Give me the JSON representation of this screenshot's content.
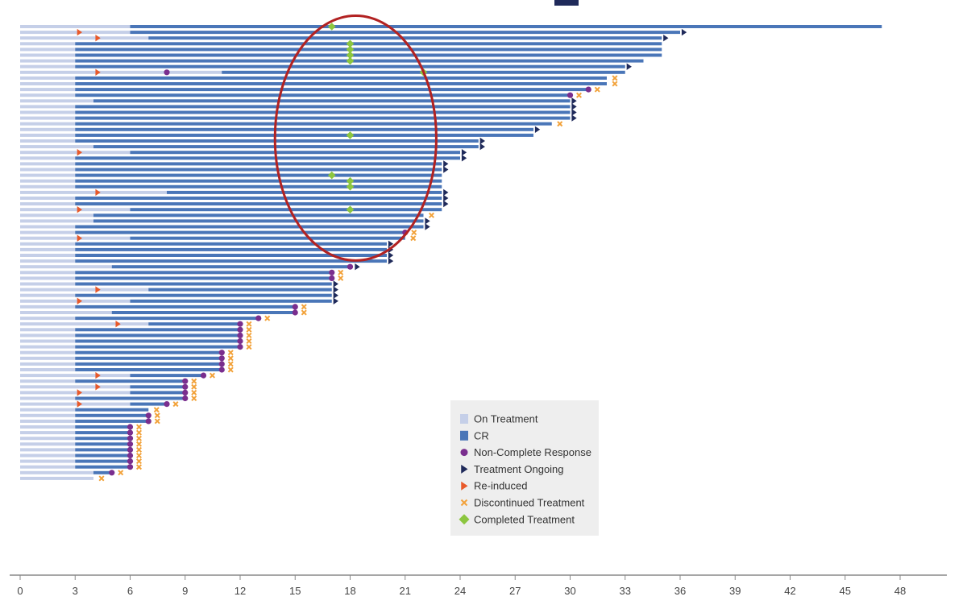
{
  "chart_data": {
    "type": "swimmer",
    "title": "",
    "xlabel": "",
    "ylabel": "",
    "xlim": [
      0,
      49
    ],
    "x_ticks": [
      0,
      3,
      6,
      9,
      12,
      15,
      18,
      21,
      24,
      27,
      30,
      33,
      36,
      39,
      42,
      45,
      48
    ],
    "grid": false,
    "legend_position": "bottom-center",
    "colors": {
      "on_treatment": "#c5cfe8",
      "cr": "#4a76b8",
      "non_complete_response": "#7a2e8e",
      "treatment_ongoing": "#1f2a5a",
      "re_induced": "#e8592a",
      "discontinued": "#f2a23a",
      "completed": "#8cc63f",
      "annotation_ellipse": "#b22222"
    },
    "legend": [
      {
        "key": "on_treatment",
        "label": "On Treatment",
        "shape": "square-light"
      },
      {
        "key": "cr",
        "label": "CR",
        "shape": "square"
      },
      {
        "key": "non_complete_response",
        "label": "Non-Complete Response",
        "shape": "circle"
      },
      {
        "key": "treatment_ongoing",
        "label": "Treatment Ongoing",
        "shape": "triangle"
      },
      {
        "key": "re_induced",
        "label": "Re-induced",
        "shape": "triangle"
      },
      {
        "key": "discontinued",
        "label": "Discontinued Treatment",
        "shape": "x"
      },
      {
        "key": "completed",
        "label": "Completed Treatment",
        "shape": "diamond"
      }
    ],
    "annotation": {
      "shape": "ellipse",
      "cx": 18.3,
      "cy_row": 19.5,
      "rx": 4.4,
      "ry_rows": 20
    },
    "rows": [
      {
        "cr_start": 6,
        "end": 47,
        "marker": "completed",
        "marker_x": 17
      },
      {
        "cr_start": 6,
        "end": 36,
        "marker": "ongoing",
        "reinduced": 3.2
      },
      {
        "cr_start": 7,
        "end": 35,
        "marker": "ongoing",
        "reinduced": 4.2
      },
      {
        "cr_start": 3,
        "end": 35,
        "marker": "completed",
        "marker_x": 18
      },
      {
        "cr_start": 3,
        "end": 35,
        "marker": "completed",
        "marker_x": 18
      },
      {
        "cr_start": 3,
        "end": 35,
        "marker": "completed",
        "marker_x": 18
      },
      {
        "cr_start": 3,
        "end": 34,
        "marker": "completed",
        "marker_x": 18
      },
      {
        "cr_start": 3,
        "end": 33,
        "marker": "ongoing"
      },
      {
        "cr_start": 11,
        "end": 33,
        "marker": "completed",
        "marker_x": 22,
        "reinduced": 4.2,
        "ncr": 8
      },
      {
        "cr_start": 3,
        "end": 32,
        "marker": "discontinued"
      },
      {
        "cr_start": 3,
        "end": 32,
        "marker": "discontinued"
      },
      {
        "cr_start": 3,
        "end": 31,
        "marker": "ncr_disc"
      },
      {
        "cr_start": 3,
        "end": 30,
        "marker": "ncr_disc"
      },
      {
        "cr_start": 4,
        "end": 30,
        "marker": "ongoing"
      },
      {
        "cr_start": 3,
        "end": 30,
        "marker": "ongoing"
      },
      {
        "cr_start": 3,
        "end": 30,
        "marker": "ongoing"
      },
      {
        "cr_start": 3,
        "end": 30,
        "marker": "ongoing"
      },
      {
        "cr_start": 3,
        "end": 29,
        "marker": "discontinued"
      },
      {
        "cr_start": 3,
        "end": 28,
        "marker": "ongoing"
      },
      {
        "cr_start": 3,
        "end": 28,
        "marker": "completed",
        "marker_x": 18
      },
      {
        "cr_start": 3,
        "end": 25,
        "marker": "ongoing"
      },
      {
        "cr_start": 4,
        "end": 25,
        "marker": "ongoing"
      },
      {
        "cr_start": 6,
        "end": 24,
        "marker": "ongoing",
        "reinduced": 3.2
      },
      {
        "cr_start": 3,
        "end": 24,
        "marker": "ongoing"
      },
      {
        "cr_start": 3,
        "end": 23,
        "marker": "ongoing"
      },
      {
        "cr_start": 3,
        "end": 23,
        "marker": "ongoing"
      },
      {
        "cr_start": 3,
        "end": 23,
        "marker": "completed",
        "marker_x": 17
      },
      {
        "cr_start": 3,
        "end": 23,
        "marker": "completed",
        "marker_x": 18
      },
      {
        "cr_start": 3,
        "end": 23,
        "marker": "completed",
        "marker_x": 18
      },
      {
        "cr_start": 8,
        "end": 23,
        "marker": "ongoing",
        "reinduced": 4.2
      },
      {
        "cr_start": 3,
        "end": 23,
        "marker": "ongoing"
      },
      {
        "cr_start": 3,
        "end": 23,
        "marker": "ongoing"
      },
      {
        "cr_start": 6,
        "end": 23,
        "marker": "completed",
        "marker_x": 18,
        "reinduced": 3.2
      },
      {
        "cr_start": 4,
        "end": 22,
        "marker": "discontinued"
      },
      {
        "cr_start": 4,
        "end": 22,
        "marker": "ongoing"
      },
      {
        "cr_start": 3,
        "end": 22,
        "marker": "ongoing"
      },
      {
        "cr_start": 3,
        "end": 21,
        "marker": "ncr_disc"
      },
      {
        "cr_start": 6,
        "end": 21,
        "marker": "discontinued",
        "reinduced": 3.2
      },
      {
        "cr_start": 3,
        "end": 20,
        "marker": "ongoing"
      },
      {
        "cr_start": 3,
        "end": 20,
        "marker": "ongoing"
      },
      {
        "cr_start": 3,
        "end": 20,
        "marker": "ongoing"
      },
      {
        "cr_start": 3,
        "end": 20,
        "marker": "ongoing"
      },
      {
        "cr_start": 5,
        "end": 18,
        "marker": "ncr_ongoing"
      },
      {
        "cr_start": 3,
        "end": 17,
        "marker": "ncr_disc"
      },
      {
        "cr_start": 3,
        "end": 17,
        "marker": "ncr_disc"
      },
      {
        "cr_start": 3,
        "end": 17,
        "marker": "ongoing"
      },
      {
        "cr_start": 7,
        "end": 17,
        "marker": "ongoing",
        "reinduced": 4.2
      },
      {
        "cr_start": 3,
        "end": 17,
        "marker": "ongoing"
      },
      {
        "cr_start": 6,
        "end": 17,
        "marker": "ongoing",
        "reinduced": 3.2
      },
      {
        "cr_start": 3,
        "end": 15,
        "marker": "ncr_disc"
      },
      {
        "cr_start": 5,
        "end": 15,
        "marker": "ncr_disc"
      },
      {
        "cr_start": 3,
        "end": 13,
        "marker": "ncr_disc"
      },
      {
        "cr_start": 7,
        "end": 12,
        "marker": "ncr_disc",
        "reinduced": 5.3
      },
      {
        "cr_start": 3,
        "end": 12,
        "marker": "ncr_disc"
      },
      {
        "cr_start": 3,
        "end": 12,
        "marker": "ncr_disc"
      },
      {
        "cr_start": 3,
        "end": 12,
        "marker": "ncr_disc"
      },
      {
        "cr_start": 3,
        "end": 12,
        "marker": "ncr_disc"
      },
      {
        "cr_start": 3,
        "end": 11,
        "marker": "ncr_disc"
      },
      {
        "cr_start": 3,
        "end": 11,
        "marker": "ncr_disc"
      },
      {
        "cr_start": 3,
        "end": 11,
        "marker": "ncr_disc"
      },
      {
        "cr_start": 3,
        "end": 11,
        "marker": "ncr_disc"
      },
      {
        "cr_start": 6,
        "end": 10,
        "marker": "ncr_disc",
        "reinduced": 4.2
      },
      {
        "cr_start": 3,
        "end": 9,
        "marker": "ncr_disc"
      },
      {
        "cr_start": 6,
        "end": 9,
        "marker": "ncr_disc",
        "reinduced": 4.2
      },
      {
        "cr_start": 6,
        "end": 9,
        "marker": "ncr_disc",
        "reinduced": 3.2
      },
      {
        "cr_start": 3,
        "end": 9,
        "marker": "ncr_disc"
      },
      {
        "cr_start": 6,
        "end": 8,
        "marker": "ncr_disc",
        "reinduced": 3.2
      },
      {
        "cr_start": 3,
        "end": 7,
        "marker": "discontinued"
      },
      {
        "cr_start": 3,
        "end": 7,
        "marker": "ncr_disc"
      },
      {
        "cr_start": 3,
        "end": 7,
        "marker": "ncr_disc"
      },
      {
        "cr_start": 3,
        "end": 6,
        "marker": "ncr_disc"
      },
      {
        "cr_start": 3,
        "end": 6,
        "marker": "ncr_disc"
      },
      {
        "cr_start": 3,
        "end": 6,
        "marker": "ncr_disc"
      },
      {
        "cr_start": 3,
        "end": 6,
        "marker": "ncr_disc"
      },
      {
        "cr_start": 3,
        "end": 6,
        "marker": "ncr_disc"
      },
      {
        "cr_start": 3,
        "end": 6,
        "marker": "ncr_disc"
      },
      {
        "cr_start": 3,
        "end": 6,
        "marker": "ncr_disc"
      },
      {
        "cr_start": 3,
        "end": 6,
        "marker": "ncr_disc"
      },
      {
        "cr_start": 4,
        "end": 5,
        "marker": "ncr_disc"
      },
      {
        "cr_start": null,
        "end": 4,
        "marker": "discontinued"
      }
    ]
  }
}
